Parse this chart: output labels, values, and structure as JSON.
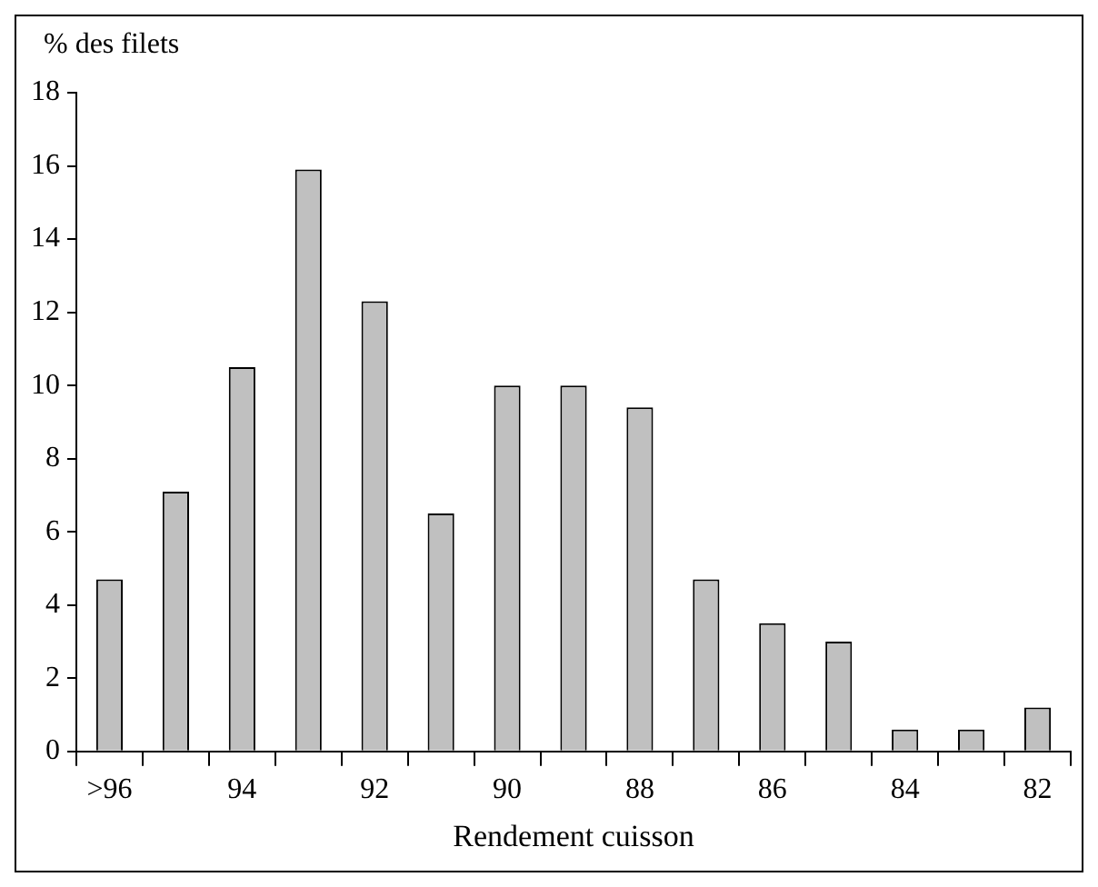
{
  "chart_data": {
    "type": "bar",
    "ylabel": "% des filets",
    "xlabel": "Rendement cuisson",
    "categories": [
      ">96",
      null,
      "94",
      null,
      "92",
      null,
      "90",
      null,
      "88",
      null,
      "86",
      null,
      "84",
      null,
      "82"
    ],
    "values": [
      4.7,
      7.1,
      10.5,
      15.9,
      12.3,
      6.5,
      10,
      10,
      9.4,
      4.7,
      3.5,
      3.0,
      0.6,
      0.6,
      1.2
    ],
    "color": "#c0c0c0",
    "ylim": [
      0,
      18
    ],
    "yticks": [
      0,
      2,
      4,
      6,
      8,
      10,
      12,
      14,
      16,
      18
    ],
    "grid": false,
    "legend": false
  }
}
